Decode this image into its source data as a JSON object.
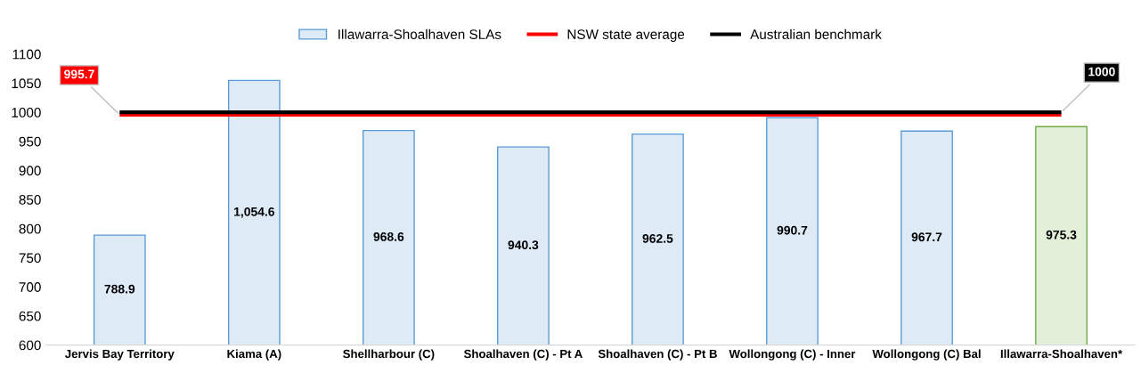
{
  "chart_data": {
    "type": "bar",
    "categories": [
      "Jervis Bay Territory",
      "Kiama (A)",
      "Shellharbour (C)",
      "Shoalhaven (C) - Pt A",
      "Shoalhaven (C) - Pt B",
      "Wollongong (C) - Inner",
      "Wollongong (C) Bal",
      "Illawarra-Shoalhaven*"
    ],
    "series": [
      {
        "name": "Illawarra-Shoalhaven SLAs",
        "color": "#deebf7",
        "colors": [
          "#deebf7",
          "#deebf7",
          "#deebf7",
          "#deebf7",
          "#deebf7",
          "#deebf7",
          "#deebf7",
          "#e2f0d9"
        ],
        "values": [
          788.9,
          1054.6,
          968.6,
          940.3,
          962.5,
          990.7,
          967.7,
          975.3
        ],
        "value_labels": [
          "788.9",
          "1,054.6",
          "968.6",
          "940.3",
          "962.5",
          "990.7",
          "967.7",
          "975.3"
        ]
      }
    ],
    "ref_lines": [
      {
        "axis": "y",
        "value": 995.7,
        "label": "NSW state average",
        "color": "#ff0000",
        "line_style": "solid"
      },
      {
        "axis": "y",
        "value": 1000,
        "label": "Australian benchmark",
        "color": "#000000",
        "line_style": "solid"
      }
    ],
    "annotations": [
      {
        "text": "995.7",
        "x": "Jervis Bay Territory",
        "y": 995.7
      },
      {
        "text": "1000",
        "x": "Illawarra-Shoalhaven*",
        "y": 1000
      }
    ],
    "ylim": [
      600,
      1100
    ],
    "yticks": [
      600,
      650,
      700,
      750,
      800,
      850,
      900,
      950,
      1000,
      1050,
      1100
    ],
    "grid": false,
    "legend": "top"
  }
}
